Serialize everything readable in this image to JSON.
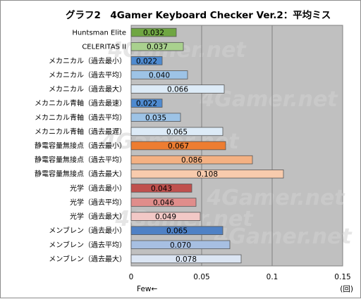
{
  "chart_data": {
    "type": "bar",
    "orientation": "horizontal",
    "title": "グラフ2　4Gamer Keyboard Checker Ver.2：平均ミス",
    "categories": [
      "Huntsman Elite",
      "CELERITAS II",
      "メカニカル（過去最小）",
      "メカニカル（過去平均）",
      "メカニカル（過去最大）",
      "メカニカル青軸（過去最速）",
      "メカニカル青軸（過去平均）",
      "メカニカル青軸（過去最遅）",
      "静電容量無接点（過去最小）",
      "静電容量無接点（過去平均）",
      "静電容量無接点（過去最大）",
      "光学（過去最小）",
      "光学（過去平均）",
      "光学（過去最大）",
      "メンブレン（過去最小）",
      "メンブレン（過去平均）",
      "メンブレン（過去最大）"
    ],
    "values": [
      0.032,
      0.037,
      0.022,
      0.04,
      0.066,
      0.022,
      0.035,
      0.065,
      0.067,
      0.086,
      0.108,
      0.043,
      0.046,
      0.049,
      0.065,
      0.07,
      0.078
    ],
    "value_labels": [
      "0.032",
      "0.037",
      "0.022",
      "0.040",
      "0.066",
      "0.022",
      "0.035",
      "0.065",
      "0.067",
      "0.086",
      "0.108",
      "0.043",
      "0.046",
      "0.049",
      "0.065",
      "0.070",
      "0.078"
    ],
    "bar_colors": [
      "#6fa642",
      "#a9d18e",
      "#4f8bd0",
      "#9dc3e6",
      "#ddebf7",
      "#4f8bd0",
      "#9dc3e6",
      "#ddebf7",
      "#ed7d31",
      "#f4b183",
      "#f8cbad",
      "#c0504d",
      "#e08d8b",
      "#f2c8c6",
      "#4f81c5",
      "#a7bfe2",
      "#dbe5f3"
    ],
    "xlim": [
      0,
      0.15
    ],
    "ticks": [
      "0",
      "0.05",
      "0.1",
      "0.15"
    ],
    "xlabel_left": "Few←",
    "unit": "(回)",
    "grid": true,
    "plot_background": "#c0c0c0",
    "watermark": "4Gamer.net"
  }
}
